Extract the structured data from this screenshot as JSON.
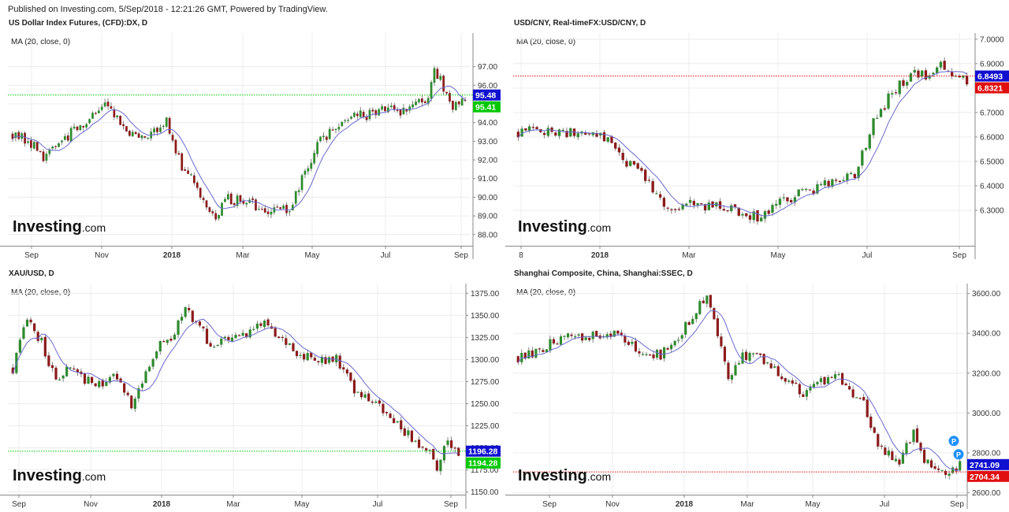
{
  "header": {
    "published": "Published on Investing.com, 5/Sep/2018 - 12:21:26 GMT, Powered by TradingView."
  },
  "colors": {
    "up": "#2e8b2e",
    "down": "#8b1a1a",
    "ma": "#6a6ad0",
    "grid": "#ececec"
  },
  "chart_data": [
    {
      "type": "candlestick",
      "title": "US Dollar Index Futures, (CFD):DX, D",
      "indicator": "MA (20, close, 0)",
      "watermark": [
        "Investing",
        ".com"
      ],
      "ylim": [
        87.4,
        98.8
      ],
      "y_ticks": [
        "97.00",
        "96.00",
        "95.00",
        "94.00",
        "93.00",
        "92.00",
        "91.00",
        "90.00",
        "89.00",
        "88.00"
      ],
      "x_ticks": [
        "Sep",
        "Nov",
        "2018",
        "Mar",
        "May",
        "Jul",
        "Sep"
      ],
      "x_bold": [
        "2018"
      ],
      "anchors": [
        [
          0,
          93.4
        ],
        [
          5,
          93.0
        ],
        [
          10,
          92.2
        ],
        [
          15,
          92.8
        ],
        [
          20,
          93.6
        ],
        [
          25,
          94.3
        ],
        [
          30,
          94.8
        ],
        [
          35,
          94.1
        ],
        [
          40,
          93.2
        ],
        [
          45,
          93.5
        ],
        [
          50,
          94.0
        ],
        [
          55,
          91.7
        ],
        [
          60,
          90.5
        ],
        [
          65,
          88.9
        ],
        [
          70,
          89.9
        ],
        [
          75,
          89.8
        ],
        [
          80,
          89.5
        ],
        [
          85,
          89.3
        ],
        [
          90,
          89.4
        ],
        [
          95,
          91.4
        ],
        [
          100,
          93.1
        ],
        [
          105,
          93.6
        ],
        [
          110,
          94.5
        ],
        [
          115,
          94.4
        ],
        [
          120,
          94.8
        ],
        [
          125,
          94.6
        ],
        [
          130,
          94.9
        ],
        [
          135,
          95.2
        ],
        [
          137,
          96.7
        ],
        [
          139,
          96.5
        ],
        [
          141,
          95.3
        ],
        [
          143,
          94.6
        ],
        [
          145,
          95.2
        ],
        [
          147,
          95.4
        ]
      ],
      "ma_lag": 7,
      "badges": [
        {
          "value": 95.48,
          "label": "95.48",
          "color": "#1010d0",
          "line": "#00c800",
          "linestyle": "dotted"
        },
        {
          "value": 95.41,
          "label": "95.41",
          "color": "#00c800"
        }
      ]
    },
    {
      "type": "candlestick",
      "title": "USD/CNY, Real-timeFX:USD/CNY, D",
      "indicator": "MA (20, close, 0)",
      "watermark": [
        "Investing",
        ".com"
      ],
      "ylim": [
        6.155,
        7.025
      ],
      "y_ticks": [
        "7.0000",
        "6.9000",
        "6.8000",
        "6.7000",
        "6.6000",
        "6.5000",
        "6.4000",
        "6.3000"
      ],
      "x_ticks": [
        "8",
        "2018",
        "Mar",
        "May",
        "Jul",
        "Sep"
      ],
      "x_bold": [
        "2018"
      ],
      "anchors": [
        [
          0,
          6.62
        ],
        [
          8,
          6.63
        ],
        [
          16,
          6.61
        ],
        [
          22,
          6.62
        ],
        [
          26,
          6.55
        ],
        [
          30,
          6.48
        ],
        [
          35,
          6.42
        ],
        [
          40,
          6.29
        ],
        [
          45,
          6.33
        ],
        [
          50,
          6.32
        ],
        [
          55,
          6.31
        ],
        [
          60,
          6.29
        ],
        [
          65,
          6.27
        ],
        [
          70,
          6.33
        ],
        [
          75,
          6.37
        ],
        [
          80,
          6.39
        ],
        [
          85,
          6.42
        ],
        [
          90,
          6.45
        ],
        [
          95,
          6.66
        ],
        [
          100,
          6.78
        ],
        [
          105,
          6.86
        ],
        [
          110,
          6.85
        ],
        [
          113,
          6.91
        ],
        [
          115,
          6.86
        ],
        [
          120,
          6.83
        ]
      ],
      "ma_lag": 7,
      "badges": [
        {
          "value": 6.8493,
          "label": "6.8493",
          "color": "#1010d0"
        },
        {
          "value": 6.8321,
          "label": "6.8321",
          "color": "#e01010",
          "line": "#e01010",
          "linestyle": "dotted",
          "lineValue": 6.8493
        }
      ]
    },
    {
      "type": "candlestick",
      "title": "XAU/USD, D",
      "indicator": "MA (20, close, 0)",
      "watermark": [
        "Investing",
        ".com"
      ],
      "ylim": [
        1147,
        1386
      ],
      "y_ticks": [
        "1375.00",
        "1350.00",
        "1325.00",
        "1300.00",
        "1275.00",
        "1250.00",
        "1225.00",
        "1200.00",
        "1175.00",
        "1150.00"
      ],
      "x_ticks": [
        "Sep",
        "Nov",
        "2018",
        "Mar",
        "May",
        "Jul",
        "Sep"
      ],
      "x_bold": [
        "2018"
      ],
      "anchors": [
        [
          0,
          1290
        ],
        [
          4,
          1345
        ],
        [
          8,
          1320
        ],
        [
          12,
          1275
        ],
        [
          16,
          1290
        ],
        [
          20,
          1275
        ],
        [
          25,
          1275
        ],
        [
          30,
          1280
        ],
        [
          33,
          1245
        ],
        [
          36,
          1270
        ],
        [
          40,
          1315
        ],
        [
          45,
          1330
        ],
        [
          48,
          1355
        ],
        [
          52,
          1340
        ],
        [
          55,
          1315
        ],
        [
          60,
          1325
        ],
        [
          65,
          1330
        ],
        [
          70,
          1340
        ],
        [
          75,
          1325
        ],
        [
          80,
          1305
        ],
        [
          85,
          1300
        ],
        [
          90,
          1300
        ],
        [
          95,
          1265
        ],
        [
          100,
          1255
        ],
        [
          105,
          1235
        ],
        [
          110,
          1215
        ],
        [
          115,
          1200
        ],
        [
          118,
          1180
        ],
        [
          121,
          1210
        ],
        [
          124,
          1196
        ]
      ],
      "ma_lag": 7,
      "badges": [
        {
          "value": 1196.28,
          "label": "1196.28",
          "color": "#1010d0",
          "line": "#00c800",
          "linestyle": "dotted"
        },
        {
          "value": 1194.28,
          "label": "1194.28",
          "color": "#00c800"
        }
      ]
    },
    {
      "type": "candlestick",
      "title": "Shanghai Composite, China, Shanghai:SSEC, D",
      "indicator": "MA (20, close, 0)",
      "watermark": [
        "Investing",
        ".com"
      ],
      "ylim": [
        2590,
        3650
      ],
      "y_ticks": [
        "3600.00",
        "3400.00",
        "3200.00",
        "3000.00",
        "2800.00",
        "2600.00"
      ],
      "x_ticks": [
        "Sep",
        "Nov",
        "2018",
        "Mar",
        "May",
        "Jul",
        "Sep"
      ],
      "x_bold": [
        "2018"
      ],
      "anchors": [
        [
          0,
          3280
        ],
        [
          5,
          3300
        ],
        [
          10,
          3370
        ],
        [
          15,
          3380
        ],
        [
          20,
          3390
        ],
        [
          25,
          3400
        ],
        [
          30,
          3380
        ],
        [
          35,
          3300
        ],
        [
          40,
          3290
        ],
        [
          45,
          3380
        ],
        [
          50,
          3520
        ],
        [
          53,
          3580
        ],
        [
          56,
          3400
        ],
        [
          59,
          3180
        ],
        [
          62,
          3270
        ],
        [
          66,
          3300
        ],
        [
          70,
          3240
        ],
        [
          75,
          3180
        ],
        [
          80,
          3100
        ],
        [
          85,
          3150
        ],
        [
          90,
          3180
        ],
        [
          93,
          3100
        ],
        [
          97,
          3050
        ],
        [
          100,
          2880
        ],
        [
          103,
          2800
        ],
        [
          107,
          2750
        ],
        [
          111,
          2900
        ],
        [
          114,
          2760
        ],
        [
          117,
          2720
        ],
        [
          121,
          2700
        ],
        [
          124,
          2741
        ]
      ],
      "ma_lag": 7,
      "badges": [
        {
          "value": 2741.09,
          "label": "2741.09",
          "color": "#1010d0"
        },
        {
          "value": 2704.34,
          "label": "2704.34",
          "color": "#e01010",
          "line": "#e01010",
          "linestyle": "dotted"
        }
      ],
      "markers": [
        {
          "label": "P",
          "color": "#1e90ff"
        },
        {
          "label": "P",
          "color": "#1e90ff"
        }
      ]
    }
  ]
}
